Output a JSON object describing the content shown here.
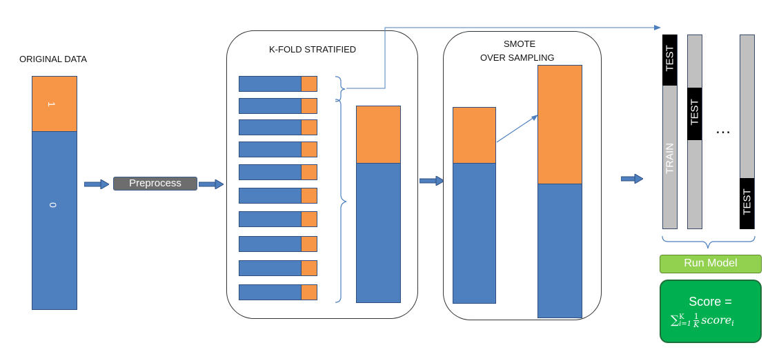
{
  "original_data": {
    "label": "ORIGINAL DATA",
    "class1_label": "1",
    "class0_label": "0"
  },
  "preprocess": {
    "label": "Preprocess"
  },
  "kfold": {
    "title": "K-FOLD STRATIFIED",
    "fold_count": 10
  },
  "smote": {
    "title_line1": "SMOTE",
    "title_line2": "OVER SAMPLING"
  },
  "folds_view": {
    "train_label": "TRAIN",
    "test_label": "TEST",
    "ellipsis": "…"
  },
  "run_model": {
    "label": "Run Model"
  },
  "score": {
    "line1": "Score ="
  },
  "colors": {
    "blue": "#4e7fbf",
    "orange": "#f79646",
    "green_light": "#92d050",
    "green_dark": "#00b050",
    "gray": "#c0c0c0",
    "black": "#000000"
  }
}
